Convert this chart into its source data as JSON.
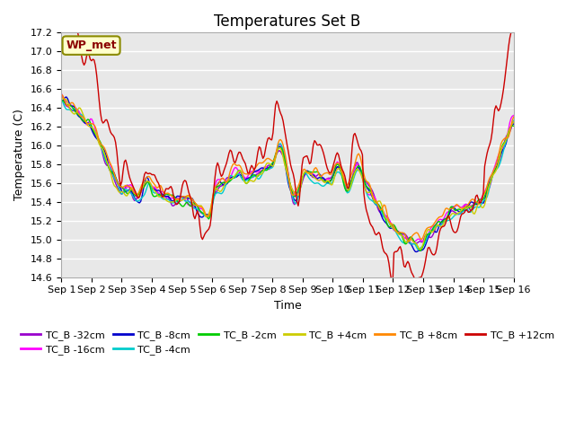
{
  "title": "Temperatures Set B",
  "xlabel": "Time",
  "ylabel": "Temperature (C)",
  "ylim": [
    14.6,
    17.2
  ],
  "series_labels": [
    "TC_B -32cm",
    "TC_B -16cm",
    "TC_B -8cm",
    "TC_B -4cm",
    "TC_B -2cm",
    "TC_B +4cm",
    "TC_B +8cm",
    "TC_B +12cm"
  ],
  "series_colors": [
    "#9900cc",
    "#ff00ff",
    "#0000cc",
    "#00cccc",
    "#00cc00",
    "#cccc00",
    "#ff8800",
    "#cc0000"
  ],
  "xtick_labels": [
    "Sep 1",
    "Sep 2",
    "Sep 3",
    "Sep 4",
    "Sep 5",
    "Sep 6",
    "Sep 7",
    "Sep 8",
    "Sep 9",
    "Sep 10",
    "Sep 11",
    "Sep 12",
    "Sep 13",
    "Sep 14",
    "Sep 15",
    "Sep 16"
  ],
  "n_days": 15,
  "points_per_day": 24,
  "plot_bg": "#e8e8e8",
  "grid_color": "#ffffff",
  "title_fontsize": 12,
  "label_fontsize": 9,
  "tick_fontsize": 8,
  "legend_fontsize": 8,
  "wp_met_label": "WP_met",
  "line_width": 1.0
}
